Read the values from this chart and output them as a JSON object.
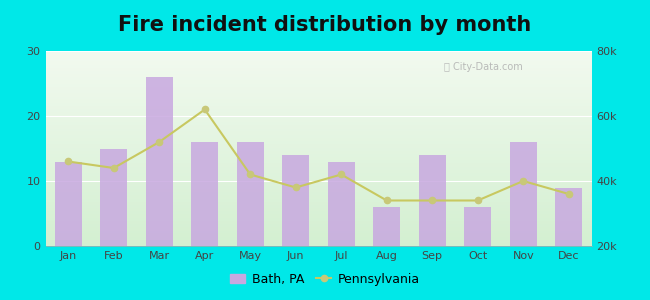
{
  "title": "Fire incident distribution by month",
  "months": [
    "Jan",
    "Feb",
    "Mar",
    "Apr",
    "May",
    "Jun",
    "Jul",
    "Aug",
    "Sep",
    "Oct",
    "Nov",
    "Dec"
  ],
  "bath_values": [
    13,
    15,
    26,
    16,
    16,
    14,
    13,
    6,
    14,
    6,
    16,
    9
  ],
  "pa_right_values": [
    46000,
    44000,
    52000,
    62000,
    42000,
    38000,
    42000,
    34000,
    34000,
    34000,
    40000,
    36000
  ],
  "bar_color": "#c8a8e0",
  "line_color": "#c8c860",
  "line_marker_color": "#c8c878",
  "left_ylim": [
    0,
    30
  ],
  "right_ylim": [
    20000,
    80000
  ],
  "left_yticks": [
    0,
    10,
    20,
    30
  ],
  "right_yticks": [
    20000,
    40000,
    60000,
    80000
  ],
  "right_yticklabels": [
    "20k",
    "40k",
    "60k",
    "80k"
  ],
  "outer_bg": "#00e8e8",
  "title_fontsize": 15,
  "tick_fontsize": 8,
  "legend_bath": "Bath, PA",
  "legend_pa": "Pennsylvania",
  "watermark": "ⓘ City-Data.com"
}
